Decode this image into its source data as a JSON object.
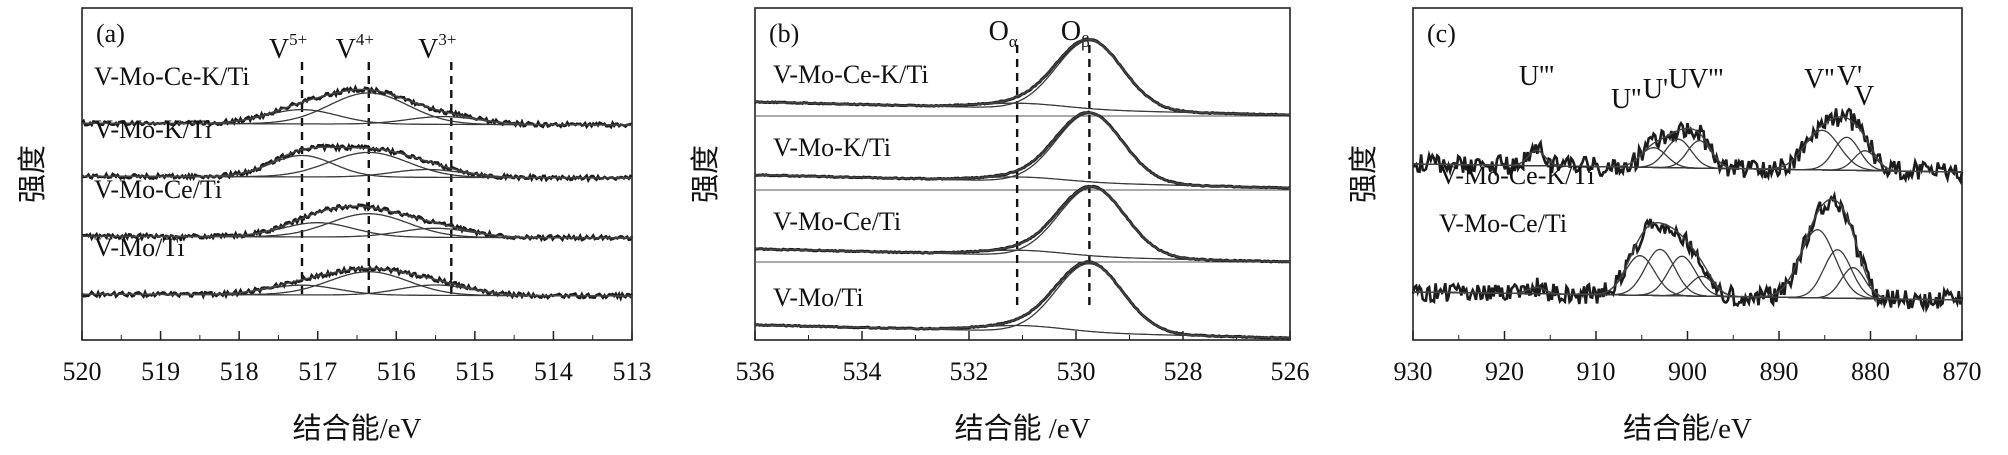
{
  "figure": {
    "chart_data": [
      {
        "type": "line",
        "panel": "(a)",
        "xlabel": "结合能/eV",
        "ylabel": "强度",
        "xlim": [
          520,
          513
        ],
        "x_ticks": [
          520,
          519,
          518,
          517,
          516,
          515,
          514,
          513
        ],
        "x_reversed": true,
        "baseline_offsets": [
          0,
          1,
          2,
          3
        ],
        "reference_lines": [
          {
            "name": "V5+",
            "base": "V",
            "sup": "5+",
            "x": 517.2
          },
          {
            "name": "V4+",
            "base": "V",
            "sup": "4+",
            "x": 516.35
          },
          {
            "name": "V3+",
            "base": "V",
            "sup": "3+",
            "x": 515.3
          }
        ],
        "series": [
          {
            "name": "V-Mo-Ce-K/Ti",
            "offset": 3,
            "components": [
              {
                "center": 517.2,
                "amp": 0.22,
                "width": 0.45
              },
              {
                "center": 516.35,
                "amp": 0.48,
                "width": 0.5
              },
              {
                "center": 515.4,
                "amp": 0.12,
                "width": 0.45
              }
            ]
          },
          {
            "name": "V-Mo-K/Ti",
            "offset": 2,
            "components": [
              {
                "center": 517.2,
                "amp": 0.33,
                "width": 0.4
              },
              {
                "center": 516.35,
                "amp": 0.38,
                "width": 0.5
              },
              {
                "center": 515.6,
                "amp": 0.12,
                "width": 0.45
              }
            ]
          },
          {
            "name": "V-Mo-Ce/Ti",
            "offset": 1,
            "components": [
              {
                "center": 517.0,
                "amp": 0.22,
                "width": 0.45
              },
              {
                "center": 516.35,
                "amp": 0.36,
                "width": 0.5
              },
              {
                "center": 515.5,
                "amp": 0.14,
                "width": 0.45
              }
            ]
          },
          {
            "name": "V-Mo/Ti",
            "offset": 0,
            "components": [
              {
                "center": 517.2,
                "amp": 0.15,
                "width": 0.45
              },
              {
                "center": 516.35,
                "amp": 0.36,
                "width": 0.5
              },
              {
                "center": 515.5,
                "amp": 0.16,
                "width": 0.45
              }
            ]
          }
        ]
      },
      {
        "type": "line",
        "panel": "(b)",
        "xlabel": "结合能 /eV",
        "xlim": [
          536,
          526
        ],
        "x_ticks": [
          536,
          534,
          532,
          530,
          528,
          526
        ],
        "x_reversed": true,
        "reference_lines": [
          {
            "name": "Oα",
            "base": "O",
            "sub": "α",
            "x": 531.1
          },
          {
            "name": "Oβ",
            "base": "O",
            "sub": "β",
            "x": 529.75
          }
        ],
        "series": [
          {
            "name": "V-Mo-Ce-K/Ti",
            "offset": 3,
            "components": [
              {
                "center": 531.0,
                "amp": 0.07,
                "width": 0.8
              },
              {
                "center": 529.75,
                "amp": 0.95,
                "width": 0.62
              }
            ]
          },
          {
            "name": "V-Mo-K/Ti",
            "offset": 2,
            "components": [
              {
                "center": 531.0,
                "amp": 0.06,
                "width": 0.8
              },
              {
                "center": 529.75,
                "amp": 0.95,
                "width": 0.62
              }
            ]
          },
          {
            "name": "V-Mo-Ce/Ti",
            "offset": 1,
            "components": [
              {
                "center": 531.0,
                "amp": 0.07,
                "width": 0.8
              },
              {
                "center": 529.7,
                "amp": 0.95,
                "width": 0.62
              }
            ]
          },
          {
            "name": "V-Mo/Ti",
            "offset": 0,
            "components": [
              {
                "center": 531.0,
                "amp": 0.08,
                "width": 0.8
              },
              {
                "center": 529.75,
                "amp": 0.95,
                "width": 0.62
              }
            ]
          }
        ]
      },
      {
        "type": "line",
        "panel": "(c)",
        "xlabel": "结合能/eV",
        "ylabel": "强度",
        "xlim": [
          930,
          870
        ],
        "x_ticks": [
          930,
          920,
          910,
          900,
          890,
          880,
          870
        ],
        "x_reversed": true,
        "peak_labels": [
          {
            "text": "U'''",
            "x": 916.5
          },
          {
            "text": "U''",
            "x": 906.7
          },
          {
            "text": "U'",
            "x": 903.5
          },
          {
            "text": "U",
            "x": 901.0
          },
          {
            "text": "V'''",
            "x": 898.0
          },
          {
            "text": "V''",
            "x": 885.6
          },
          {
            "text": "V'",
            "x": 882.3
          },
          {
            "text": "V",
            "x": 880.7
          }
        ],
        "series": [
          {
            "name": "V-Mo-Ce-K/Ti",
            "offset": 1,
            "components": [
              {
                "center": 916.5,
                "amp": 0.14,
                "width": 0.9
              },
              {
                "center": 903.7,
                "amp": 0.18,
                "width": 1.4
              },
              {
                "center": 901.0,
                "amp": 0.26,
                "width": 1.4
              },
              {
                "center": 898.7,
                "amp": 0.25,
                "width": 1.3
              },
              {
                "center": 885.3,
                "amp": 0.36,
                "width": 1.9
              },
              {
                "center": 882.6,
                "amp": 0.3,
                "width": 1.4
              },
              {
                "center": 880.6,
                "amp": 0.18,
                "width": 1.2
              }
            ]
          },
          {
            "name": "V-Mo-Ce/Ti",
            "offset": 0,
            "components": [
              {
                "center": 916.5,
                "amp": 0.06,
                "width": 0.9
              },
              {
                "center": 905.2,
                "amp": 0.36,
                "width": 1.6
              },
              {
                "center": 903.0,
                "amp": 0.42,
                "width": 1.6
              },
              {
                "center": 900.6,
                "amp": 0.36,
                "width": 1.5
              },
              {
                "center": 898.4,
                "amp": 0.18,
                "width": 1.3
              },
              {
                "center": 885.8,
                "amp": 0.62,
                "width": 1.9
              },
              {
                "center": 883.6,
                "amp": 0.44,
                "width": 1.5
              },
              {
                "center": 881.9,
                "amp": 0.28,
                "width": 1.3
              }
            ]
          }
        ]
      }
    ]
  }
}
